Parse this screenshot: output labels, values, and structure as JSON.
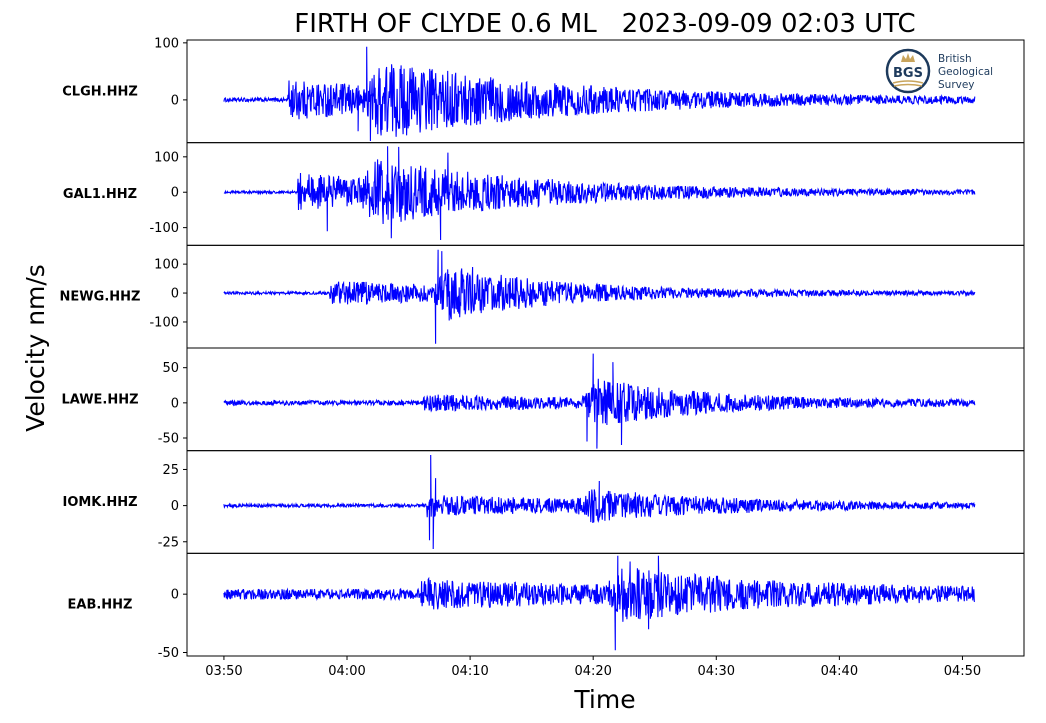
{
  "chart_data": {
    "type": "line",
    "title": "FIRTH OF CLYDE 0.6 ML   2023-09-09 02:03 UTC",
    "xlabel": "Time",
    "ylabel": "Velocity nm/s",
    "series_color": "#0000ff",
    "x_axis": {
      "unit": "minutes after 03:50",
      "xlim": [
        -3,
        65
      ],
      "trace_start": 0,
      "trace_end": 61,
      "ticks": [
        {
          "value": 0,
          "label": "03:50"
        },
        {
          "value": 10,
          "label": "04:00"
        },
        {
          "value": 20,
          "label": "04:10"
        },
        {
          "value": 30,
          "label": "04:20"
        },
        {
          "value": 40,
          "label": "04:30"
        },
        {
          "value": 50,
          "label": "04:40"
        },
        {
          "value": 60,
          "label": "04:50"
        }
      ]
    },
    "logo": {
      "abbrev": "BGS",
      "lines": [
        "British",
        "Geological",
        "Survey"
      ]
    },
    "panels": [
      {
        "station": "CLGH.HHZ",
        "ylim": [
          -75,
          105
        ],
        "yticks": [
          {
            "value": 100,
            "label": "100"
          },
          {
            "value": 0,
            "label": "0"
          }
        ],
        "noise": 3,
        "p_arrival": 5.2,
        "s_arrival": 11.5,
        "p_amp": 28,
        "s_amp": 45,
        "s_decay": 14,
        "peaks": [
          {
            "t": 11.6,
            "v": 93
          },
          {
            "t": 11.9,
            "v": -72
          },
          {
            "t": 12.5,
            "v": -60
          },
          {
            "t": 10.9,
            "v": -55
          }
        ]
      },
      {
        "station": "GAL1.HHZ",
        "ylim": [
          -150,
          140
        ],
        "yticks": [
          {
            "value": 100,
            "label": "100"
          },
          {
            "value": 0,
            "label": "0"
          },
          {
            "value": -100,
            "label": "-100"
          }
        ],
        "noise": 3,
        "p_arrival": 6.0,
        "s_arrival": 11.0,
        "p_amp": 45,
        "s_amp": 55,
        "s_decay": 12,
        "peaks": [
          {
            "t": 13.3,
            "v": 130
          },
          {
            "t": 13.6,
            "v": -130
          },
          {
            "t": 17.6,
            "v": -135
          },
          {
            "t": 14.2,
            "v": 128
          },
          {
            "t": 18.2,
            "v": 112
          },
          {
            "t": 8.4,
            "v": -110
          }
        ]
      },
      {
        "station": "NEWG.HHZ",
        "ylim": [
          -190,
          165
        ],
        "yticks": [
          {
            "value": 100,
            "label": "100"
          },
          {
            "value": 0,
            "label": "0"
          },
          {
            "value": -100,
            "label": "-100"
          }
        ],
        "noise": 4,
        "p_arrival": 8.6,
        "s_arrival": 17.0,
        "p_amp": 35,
        "s_amp": 70,
        "s_decay": 8,
        "peaks": [
          {
            "t": 17.2,
            "v": -175
          },
          {
            "t": 17.4,
            "v": 150
          },
          {
            "t": 17.7,
            "v": 145
          },
          {
            "t": 18.3,
            "v": -95
          },
          {
            "t": 20.2,
            "v": 90
          }
        ]
      },
      {
        "station": "LAWE.HHZ",
        "ylim": [
          -68,
          78
        ],
        "yticks": [
          {
            "value": 50,
            "label": "50"
          },
          {
            "value": 0,
            "label": "0"
          },
          {
            "value": -50,
            "label": "-50"
          }
        ],
        "noise": 3,
        "p_arrival": 16.2,
        "s_arrival": 29.0,
        "p_amp": 8,
        "s_amp": 30,
        "s_decay": 8,
        "peaks": [
          {
            "t": 30.0,
            "v": 70
          },
          {
            "t": 30.3,
            "v": -65
          },
          {
            "t": 31.6,
            "v": 58
          },
          {
            "t": 32.3,
            "v": -60
          },
          {
            "t": 29.5,
            "v": -55
          }
        ]
      },
      {
        "station": "IOMK.HHZ",
        "ylim": [
          -33,
          38
        ],
        "yticks": [
          {
            "value": 25,
            "label": "25"
          },
          {
            "value": 0,
            "label": "0"
          },
          {
            "value": -25,
            "label": "-25"
          }
        ],
        "noise": 1,
        "p_arrival": 16.5,
        "s_arrival": 28.5,
        "p_amp": 6,
        "s_amp": 8,
        "s_decay": 10,
        "peaks": [
          {
            "t": 16.8,
            "v": 35
          },
          {
            "t": 17.0,
            "v": -30
          },
          {
            "t": 16.7,
            "v": -24
          },
          {
            "t": 17.2,
            "v": 19
          },
          {
            "t": 30.5,
            "v": 17
          }
        ]
      },
      {
        "station": "EAB.HHZ",
        "ylim": [
          -53,
          35
        ],
        "yticks": [
          {
            "value": 0,
            "label": "0"
          },
          {
            "value": -50,
            "label": "-50"
          }
        ],
        "noise": 4,
        "p_arrival": 16.0,
        "s_arrival": 31.0,
        "p_amp": 8,
        "s_amp": 16,
        "s_decay": 12,
        "peaks": [
          {
            "t": 31.8,
            "v": -48
          },
          {
            "t": 32.0,
            "v": 33
          },
          {
            "t": 35.3,
            "v": 33
          },
          {
            "t": 34.5,
            "v": -30
          },
          {
            "t": 33.0,
            "v": 28
          }
        ]
      }
    ]
  }
}
